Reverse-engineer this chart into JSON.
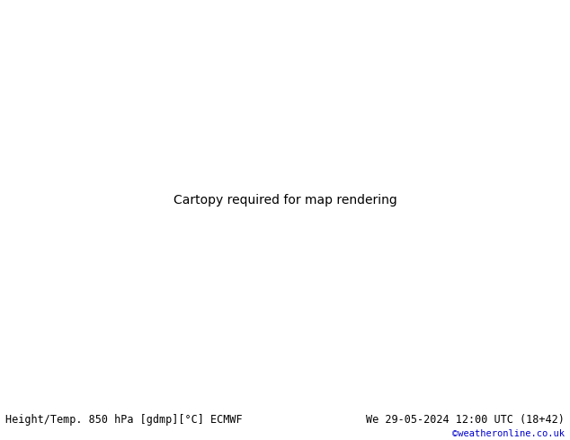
{
  "title_left": "Height/Temp. 850 hPa [gdmp][°C] ECMWF",
  "title_right": "We 29-05-2024 12:00 UTC (18+42)",
  "copyright": "©weatheronline.co.uk",
  "fig_width": 6.34,
  "fig_height": 4.9,
  "dpi": 100,
  "map_extent": [
    -30,
    45,
    25,
    75
  ],
  "background_land_color": "#c8e6a0",
  "background_sea_color": "#f0f0f0",
  "background_gray_color": "#b0b0b0",
  "bottom_bar_color": "#f0f0f0",
  "bottom_text_color": "#000000",
  "copyright_color": "#0000cc",
  "geopotential_color": "#000000",
  "geopotential_linewidth": 2.2,
  "geopotential_label_size": 8,
  "temp_colors": {
    "-25": "#cc00cc",
    "-20": "#ff0000",
    "-15": "#ff6600",
    "-10": "#0066ff",
    "-5": "#00aaff",
    "0": "#00cc88",
    "5": "#88cc00",
    "10": "#ffaa00",
    "15": "#ff6600",
    "20": "#ff4400",
    "25": "#cc00cc"
  },
  "temp_linewidth": 1.5,
  "geopotential_levels": [
    142,
    150
  ],
  "temp_levels": [
    -25,
    -20,
    -15,
    -10,
    -5,
    0,
    5,
    10,
    15,
    20,
    25
  ]
}
